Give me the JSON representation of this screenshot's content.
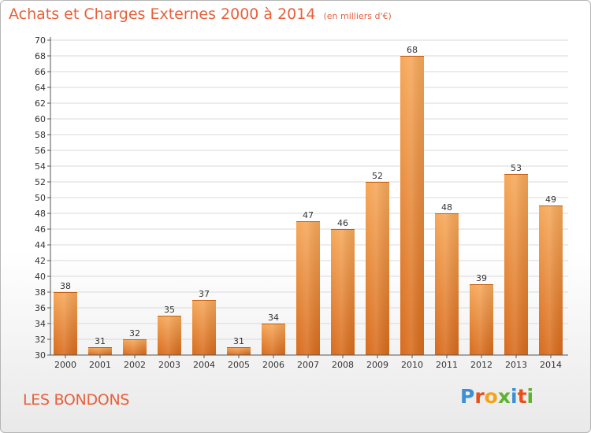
{
  "title": "Achats et Charges Externes 2000 à 2014",
  "unit": "(en milliers d'€)",
  "commune": "LES BONDONS",
  "logo": {
    "letters": [
      "P",
      "r",
      "o",
      "x",
      "i",
      "t",
      "i"
    ],
    "colors": [
      "#3a8fd6",
      "#e94e1b",
      "#f5a31a",
      "#5db32e",
      "#3a8fd6",
      "#e94e1b",
      "#5db32e"
    ]
  },
  "colors": {
    "bar_light": "#f6a85a",
    "bar_dark": "#d86b1c",
    "title": "#e8603a",
    "grid": "#d9d9d9"
  },
  "chart_data": {
    "type": "bar",
    "title": "Achats et Charges Externes 2000 à 2014",
    "subtitle": "(en milliers d'€)",
    "categories": [
      "2000",
      "2001",
      "2002",
      "2003",
      "2004",
      "2005",
      "2006",
      "2007",
      "2008",
      "2009",
      "2010",
      "2011",
      "2012",
      "2013",
      "2014"
    ],
    "values": [
      38,
      31,
      32,
      35,
      37,
      31,
      34,
      47,
      46,
      52,
      68,
      48,
      39,
      53,
      49
    ],
    "ylim": [
      30,
      70
    ],
    "ystep": 2,
    "xlabel": "",
    "ylabel": "",
    "grid": true,
    "data_labels": true
  }
}
